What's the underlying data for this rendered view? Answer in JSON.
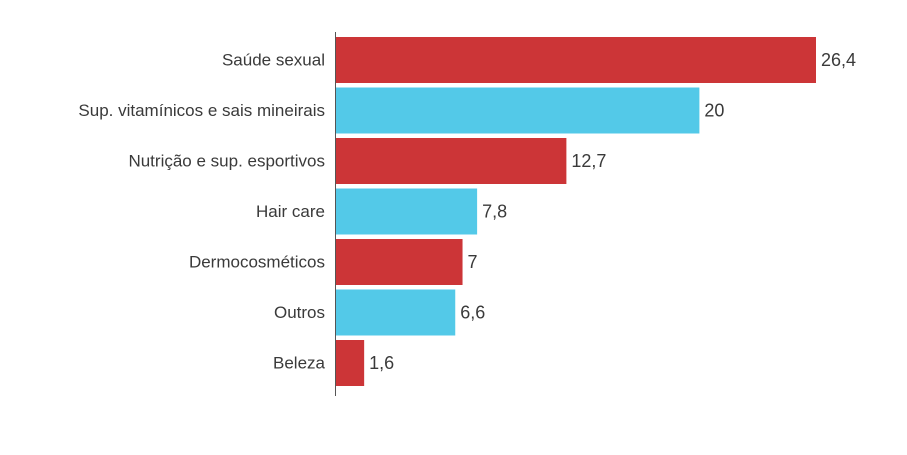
{
  "chart_data": {
    "type": "bar",
    "orientation": "horizontal",
    "title": "",
    "xlabel": "",
    "ylabel": "",
    "grid": false,
    "legend": "none",
    "categories": [
      "Saúde sexual",
      "Sup. vitamínicos e sais mineirais",
      "Nutrição e sup. esportivos",
      "Hair care",
      "Dermocosméticos",
      "Outros",
      "Beleza"
    ],
    "values": [
      26.4,
      20,
      12.7,
      7.8,
      7,
      6.6,
      1.6
    ],
    "value_labels": [
      "26,4",
      "20",
      "12,7",
      "7,8",
      "7",
      "6,6",
      "1,6"
    ],
    "colors": [
      "#cc3537",
      "#53c9e8",
      "#cc3537",
      "#53c9e8",
      "#cc3537",
      "#53c9e8",
      "#cc3537"
    ],
    "xlim": [
      0,
      26.4
    ]
  }
}
